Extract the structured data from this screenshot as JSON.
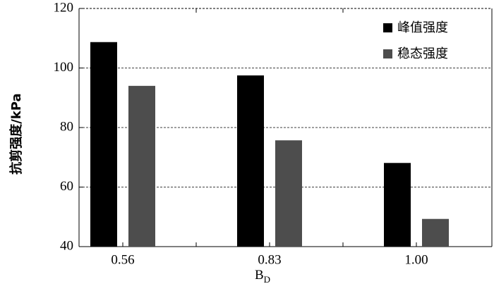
{
  "chart_data": {
    "type": "bar",
    "y_label": "抗剪强度/kPa",
    "x_label": {
      "text": "B",
      "subscript": "D"
    },
    "categories": [
      "0.56",
      "0.83",
      "1.00"
    ],
    "series": [
      {
        "name": "峰值强度",
        "color": "#000000",
        "values": [
          108.7,
          97.5,
          68.1
        ]
      },
      {
        "name": "稳态强度",
        "color": "#4d4d4d",
        "values": [
          94.0,
          75.7,
          49.3
        ]
      }
    ],
    "ylim": [
      40,
      120
    ],
    "yticks": [
      40,
      60,
      80,
      100,
      120
    ],
    "grid": true,
    "legend": "upper right"
  }
}
